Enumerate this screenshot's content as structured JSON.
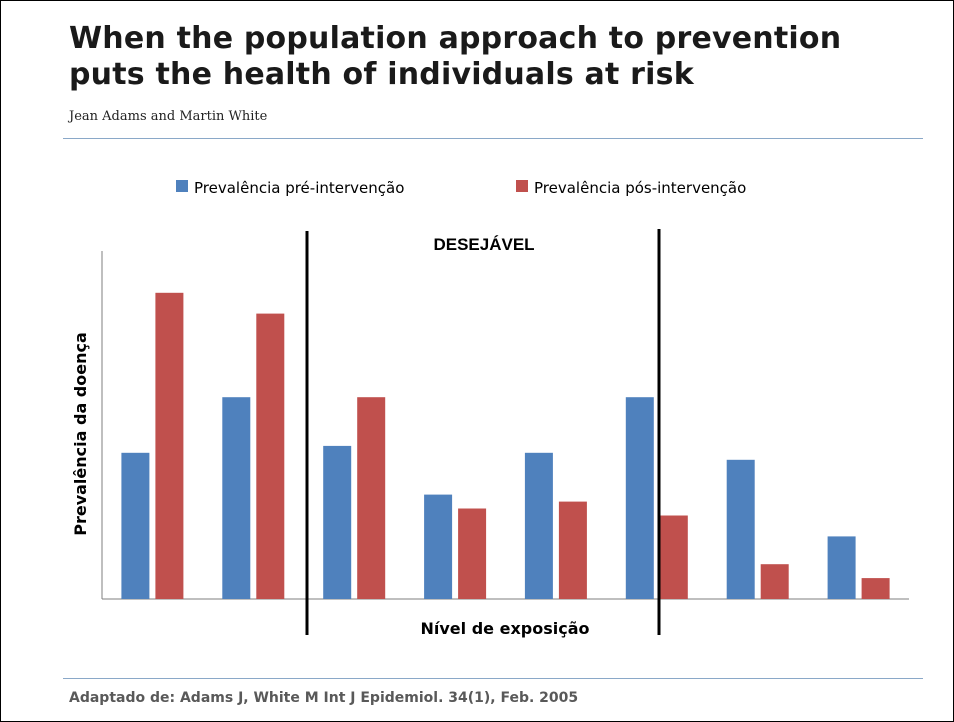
{
  "header": {
    "title_line1": "When the population approach to prevention",
    "title_line2": "puts the health of individuals at risk",
    "authors": "Jean Adams and Martin White"
  },
  "footer": {
    "citation": "Adaptado de: Adams J, White M  Int J Epidemiol. 34(1), Feb. 2005"
  },
  "colors": {
    "pre": "#4f81bd",
    "post": "#c0504d",
    "axis": "#7f7f7f",
    "divider": "#000000"
  },
  "chart_data": {
    "type": "bar",
    "xlabel": "Nível de exposição",
    "ylabel": "Prevalência da doença",
    "region_label": "DESEJÁVEL",
    "region_span": [
      2,
      5
    ],
    "legend_position": "top",
    "grid": false,
    "ylim": [
      0,
      1
    ],
    "categories": [
      "",
      "",
      "",
      "",
      "",
      "",
      "",
      ""
    ],
    "series": [
      {
        "name": "Prevalência pré-intervenção",
        "values": [
          0.42,
          0.58,
          0.44,
          0.3,
          0.42,
          0.58,
          0.4,
          0.18
        ]
      },
      {
        "name": "Prevalência pós-intervenção",
        "values": [
          0.88,
          0.82,
          0.58,
          0.26,
          0.28,
          0.24,
          0.1,
          0.06
        ]
      }
    ]
  }
}
